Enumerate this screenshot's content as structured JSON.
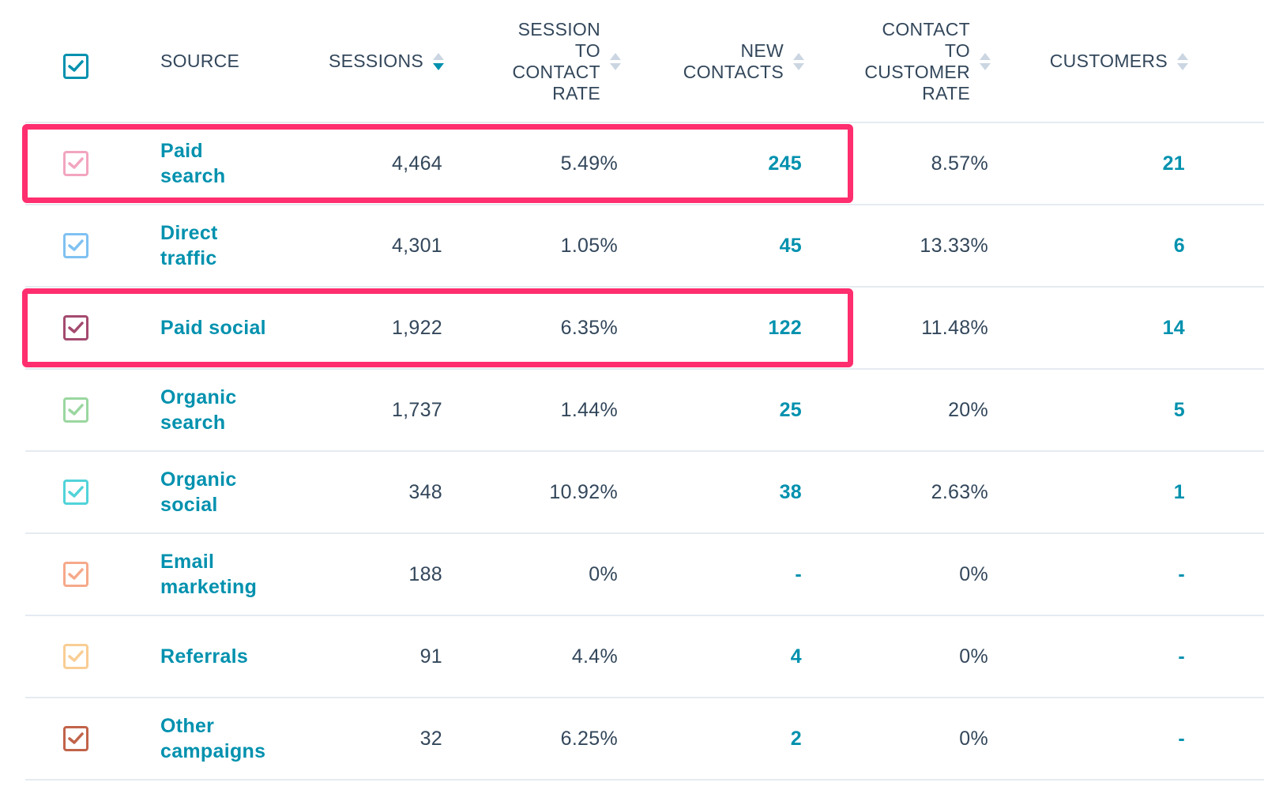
{
  "header": {
    "select_all_color": "#0091ae",
    "columns": {
      "source": "SOURCE",
      "sessions": "SESSIONS",
      "session_to_contact_rate": [
        "SESSION",
        "TO",
        "CONTACT",
        "RATE"
      ],
      "new_contacts": [
        "NEW",
        "CONTACTS"
      ],
      "contact_to_customer_rate": [
        "CONTACT",
        "TO",
        "CUSTOMER",
        "RATE"
      ],
      "customers": "CUSTOMERS"
    }
  },
  "rows": [
    {
      "source": [
        "Paid",
        "search"
      ],
      "sessions": "4,464",
      "stc_rate": "5.49%",
      "new_contacts": "245",
      "ctc_rate": "8.57%",
      "customers": "21",
      "checkbox_color": "#f2a5bf",
      "checkbox_filled": false,
      "highlighted": true
    },
    {
      "source": [
        "Direct",
        "traffic"
      ],
      "sessions": "4,301",
      "stc_rate": "1.05%",
      "new_contacts": "45",
      "ctc_rate": "13.33%",
      "customers": "6",
      "checkbox_color": "#7fc1f2",
      "checkbox_filled": false,
      "highlighted": false
    },
    {
      "source": [
        "Paid social"
      ],
      "sessions": "1,922",
      "stc_rate": "6.35%",
      "new_contacts": "122",
      "ctc_rate": "11.48%",
      "customers": "14",
      "checkbox_color": "#a44a6f",
      "checkbox_filled": false,
      "highlighted": true
    },
    {
      "source": [
        "Organic",
        "search"
      ],
      "sessions": "1,737",
      "stc_rate": "1.44%",
      "new_contacts": "25",
      "ctc_rate": "20%",
      "customers": "5",
      "checkbox_color": "#9ad7a0",
      "checkbox_filled": false,
      "highlighted": false
    },
    {
      "source": [
        "Organic",
        "social"
      ],
      "sessions": "348",
      "stc_rate": "10.92%",
      "new_contacts": "38",
      "ctc_rate": "2.63%",
      "customers": "1",
      "checkbox_color": "#51d3d9",
      "checkbox_filled": false,
      "highlighted": false
    },
    {
      "source": [
        "Email",
        "marketing"
      ],
      "sessions": "188",
      "stc_rate": "0%",
      "new_contacts": "-",
      "ctc_rate": "0%",
      "customers": "-",
      "checkbox_color": "#f6a98a",
      "checkbox_filled": false,
      "highlighted": false
    },
    {
      "source": [
        "Referrals"
      ],
      "sessions": "91",
      "stc_rate": "4.4%",
      "new_contacts": "4",
      "ctc_rate": "0%",
      "customers": "-",
      "checkbox_color": "#f9cd94",
      "checkbox_filled": false,
      "highlighted": false
    },
    {
      "source": [
        "Other",
        "campaigns"
      ],
      "sessions": "32",
      "stc_rate": "6.25%",
      "new_contacts": "2",
      "ctc_rate": "0%",
      "customers": "-",
      "checkbox_color": "#c1634a",
      "checkbox_filled": false,
      "highlighted": false
    }
  ],
  "highlight_color": "#ff2e6e"
}
